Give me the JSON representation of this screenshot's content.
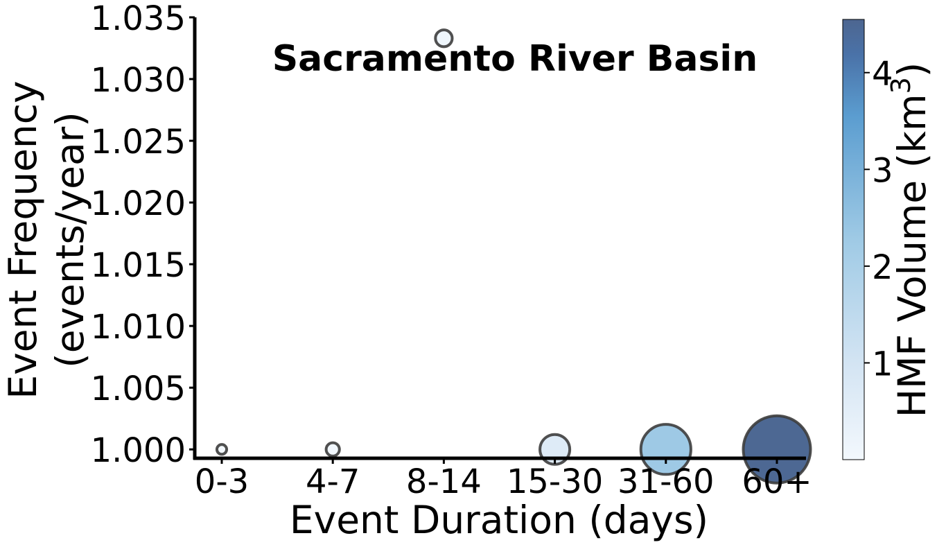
{
  "chart_data": {
    "type": "scatter",
    "title": "Sacramento River Basin",
    "xlabel": "Event Duration (days)",
    "ylabel_line1": "Event Frequency",
    "ylabel_line2": "(events/year)",
    "categories": [
      "0-3",
      "4-7",
      "8-14",
      "15-30",
      "31-60",
      "60+"
    ],
    "y_ticks": [
      "1.000",
      "1.005",
      "1.010",
      "1.015",
      "1.020",
      "1.025",
      "1.030",
      "1.035"
    ],
    "ylim": [
      0.99917,
      1.035
    ],
    "points": [
      {
        "category": "0-3",
        "frequency": 1.0,
        "volume": 0.01
      },
      {
        "category": "4-7",
        "frequency": 1.0,
        "volume": 0.05
      },
      {
        "category": "8-14",
        "frequency": 1.0333,
        "volume": 0.12
      },
      {
        "category": "15-30",
        "frequency": 1.0,
        "volume": 0.65
      },
      {
        "category": "31-60",
        "frequency": 1.0,
        "volume": 2.3
      },
      {
        "category": "60+",
        "frequency": 1.0,
        "volume": 4.5
      }
    ],
    "colorbar": {
      "label": "HMF Volume (km",
      "label_sup": "3",
      "label_close": ")",
      "ticks": [
        "1",
        "2",
        "3",
        "4"
      ],
      "range": [
        0.0,
        4.55
      ],
      "colors": [
        "#f3f8fd",
        "#d3e4f3",
        "#9fcae5",
        "#5b9dd0",
        "#4a72a8",
        "#4d6690"
      ]
    },
    "marker_edge_color": "#3d3d3d",
    "grid": false,
    "legend": "none"
  }
}
